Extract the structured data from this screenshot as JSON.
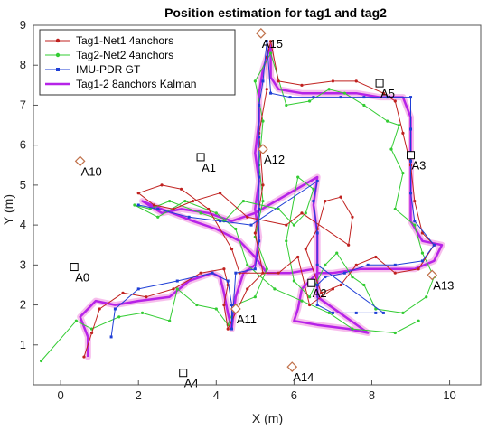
{
  "chart_data": {
    "type": "scatter",
    "title": "Position estimation for tag1 and tag2",
    "xlabel": "X (m)",
    "ylabel": "Y (m)",
    "xlim": [
      -0.7,
      10.8
    ],
    "ylim": [
      0,
      9
    ],
    "xticks": [
      0,
      2,
      4,
      6,
      8,
      10
    ],
    "yticks": [
      1,
      2,
      3,
      4,
      5,
      6,
      7,
      8,
      9
    ],
    "grid": false,
    "legend_position": "top-left",
    "series": [
      {
        "name": "Tag1-Net1 4anchors",
        "color": "#c0211f",
        "marker": "dot",
        "points": [
          [
            0.6,
            0.7
          ],
          [
            0.8,
            1.3
          ],
          [
            1.0,
            1.9
          ],
          [
            1.6,
            2.3
          ],
          [
            2.2,
            2.2
          ],
          [
            2.9,
            2.4
          ],
          [
            3.6,
            2.8
          ],
          [
            4.2,
            2.9
          ],
          [
            4.3,
            2.5
          ],
          [
            4.2,
            2.0
          ],
          [
            4.3,
            1.4
          ],
          [
            4.8,
            2.4
          ],
          [
            5.2,
            2.8
          ],
          [
            5.0,
            3.8
          ],
          [
            5.2,
            5.0
          ],
          [
            5.1,
            6.3
          ],
          [
            5.3,
            7.4
          ],
          [
            5.3,
            8.2
          ],
          [
            5.4,
            8.6
          ],
          [
            5.6,
            7.6
          ],
          [
            6.2,
            7.5
          ],
          [
            7.0,
            7.6
          ],
          [
            7.6,
            7.6
          ],
          [
            8.3,
            7.3
          ],
          [
            8.6,
            7.1
          ],
          [
            8.8,
            6.3
          ],
          [
            9.0,
            5.5
          ],
          [
            9.1,
            4.6
          ],
          [
            9.3,
            3.8
          ],
          [
            9.6,
            3.5
          ],
          [
            9.2,
            2.9
          ],
          [
            8.6,
            2.8
          ],
          [
            8.1,
            3.2
          ],
          [
            7.6,
            3.0
          ],
          [
            7.2,
            2.5
          ],
          [
            6.7,
            2.3
          ],
          [
            6.3,
            3.4
          ],
          [
            6.6,
            3.9
          ],
          [
            6.8,
            4.6
          ],
          [
            7.2,
            4.7
          ],
          [
            7.5,
            4.2
          ],
          [
            7.4,
            3.5
          ],
          [
            6.2,
            4.3
          ],
          [
            5.8,
            4.0
          ],
          [
            4.8,
            4.2
          ],
          [
            4.1,
            4.8
          ],
          [
            3.4,
            4.6
          ],
          [
            2.9,
            4.4
          ],
          [
            2.4,
            4.5
          ],
          [
            2.0,
            4.8
          ],
          [
            2.6,
            5.0
          ],
          [
            3.1,
            4.9
          ],
          [
            3.8,
            4.4
          ],
          [
            4.4,
            3.4
          ],
          [
            4.6,
            2.8
          ],
          [
            5.6,
            2.8
          ],
          [
            6.1,
            3.2
          ],
          [
            6.4,
            2.0
          ],
          [
            7.0,
            2.4
          ]
        ]
      },
      {
        "name": "Tag2-Net2 4anchors",
        "color": "#33cc33",
        "marker": "dot",
        "points": [
          [
            -0.5,
            0.6
          ],
          [
            0.4,
            1.6
          ],
          [
            0.8,
            1.4
          ],
          [
            1.5,
            1.7
          ],
          [
            2.1,
            1.8
          ],
          [
            2.8,
            1.6
          ],
          [
            3.0,
            2.4
          ],
          [
            3.5,
            2.0
          ],
          [
            4.0,
            1.9
          ],
          [
            4.3,
            1.5
          ],
          [
            4.5,
            2.0
          ],
          [
            5.0,
            2.2
          ],
          [
            5.3,
            2.9
          ],
          [
            5.0,
            3.7
          ],
          [
            5.2,
            4.6
          ],
          [
            5.1,
            5.5
          ],
          [
            5.2,
            6.6
          ],
          [
            5.0,
            7.6
          ],
          [
            5.4,
            8.3
          ],
          [
            5.8,
            7.0
          ],
          [
            6.4,
            7.1
          ],
          [
            6.9,
            7.4
          ],
          [
            7.3,
            7.3
          ],
          [
            7.8,
            7.0
          ],
          [
            8.4,
            6.6
          ],
          [
            8.7,
            6.5
          ],
          [
            8.5,
            5.9
          ],
          [
            8.8,
            5.3
          ],
          [
            8.6,
            4.4
          ],
          [
            9.1,
            4.0
          ],
          [
            9.3,
            3.3
          ],
          [
            9.6,
            2.7
          ],
          [
            9.4,
            2.2
          ],
          [
            8.8,
            1.8
          ],
          [
            8.1,
            1.9
          ],
          [
            7.8,
            2.5
          ],
          [
            7.5,
            2.7
          ],
          [
            7.1,
            3.3
          ],
          [
            6.8,
            3.0
          ],
          [
            6.4,
            2.2
          ],
          [
            6.0,
            2.6
          ],
          [
            5.8,
            3.6
          ],
          [
            6.1,
            5.2
          ],
          [
            6.5,
            4.9
          ],
          [
            6.3,
            4.3
          ],
          [
            6.0,
            4.0
          ],
          [
            5.6,
            4.4
          ],
          [
            4.7,
            4.6
          ],
          [
            4.2,
            4.1
          ],
          [
            3.6,
            4.3
          ],
          [
            2.8,
            4.6
          ],
          [
            2.3,
            4.4
          ],
          [
            1.9,
            4.5
          ],
          [
            2.5,
            4.2
          ],
          [
            3.2,
            4.6
          ],
          [
            4.0,
            4.3
          ],
          [
            4.5,
            3.9
          ],
          [
            4.8,
            3.0
          ],
          [
            5.5,
            2.4
          ],
          [
            6.2,
            2.1
          ],
          [
            6.9,
            1.8
          ],
          [
            7.5,
            1.4
          ],
          [
            8.6,
            1.3
          ],
          [
            9.2,
            1.6
          ]
        ]
      },
      {
        "name": "IMU-PDR GT",
        "color": "#1f3fd6",
        "marker": "square",
        "points": [
          [
            1.3,
            1.2
          ],
          [
            1.4,
            1.9
          ],
          [
            2.0,
            2.4
          ],
          [
            3.0,
            2.6
          ],
          [
            3.9,
            2.8
          ],
          [
            4.3,
            2.6
          ],
          [
            4.4,
            2.0
          ],
          [
            4.4,
            1.4
          ],
          [
            4.5,
            2.8
          ],
          [
            5.0,
            2.9
          ],
          [
            5.1,
            3.6
          ],
          [
            5.1,
            4.4
          ],
          [
            5.1,
            5.2
          ],
          [
            5.1,
            6.2
          ],
          [
            5.1,
            7.0
          ],
          [
            5.2,
            7.6
          ],
          [
            5.3,
            8.6
          ],
          [
            5.4,
            7.3
          ],
          [
            5.9,
            7.2
          ],
          [
            6.5,
            7.2
          ],
          [
            7.2,
            7.2
          ],
          [
            7.8,
            7.2
          ],
          [
            8.4,
            7.2
          ],
          [
            9.0,
            7.2
          ],
          [
            9.0,
            6.4
          ],
          [
            9.0,
            5.6
          ],
          [
            9.0,
            4.8
          ],
          [
            9.1,
            4.1
          ],
          [
            9.6,
            3.5
          ],
          [
            9.3,
            3.1
          ],
          [
            8.6,
            3.0
          ],
          [
            7.9,
            3.0
          ],
          [
            7.3,
            2.8
          ],
          [
            6.8,
            2.7
          ],
          [
            6.6,
            2.5
          ],
          [
            6.6,
            2.0
          ],
          [
            7.0,
            1.8
          ],
          [
            7.6,
            1.8
          ],
          [
            8.1,
            1.8
          ],
          [
            8.3,
            1.8
          ],
          [
            6.6,
            3.0
          ],
          [
            6.6,
            3.8
          ],
          [
            6.5,
            4.6
          ],
          [
            6.6,
            5.1
          ],
          [
            4.9,
            4.0
          ],
          [
            4.1,
            4.1
          ],
          [
            3.3,
            4.2
          ],
          [
            2.5,
            4.4
          ],
          [
            2.0,
            4.5
          ]
        ]
      },
      {
        "name": "Tag1-2 8anchors Kalman",
        "color": "#b623e8",
        "marker": "line",
        "points": [
          [
            0.7,
            0.7
          ],
          [
            0.7,
            1.2
          ],
          [
            0.5,
            1.7
          ],
          [
            0.9,
            2.1
          ],
          [
            1.4,
            2.0
          ],
          [
            2.0,
            2.1
          ],
          [
            2.8,
            2.2
          ],
          [
            3.3,
            2.6
          ],
          [
            3.9,
            2.8
          ],
          [
            4.1,
            2.7
          ],
          [
            4.2,
            2.3
          ],
          [
            4.3,
            1.8
          ],
          [
            4.4,
            1.4
          ],
          [
            4.5,
            2.2
          ],
          [
            4.7,
            2.8
          ],
          [
            5.0,
            3.0
          ],
          [
            5.1,
            3.7
          ],
          [
            5.0,
            4.4
          ],
          [
            5.1,
            5.1
          ],
          [
            5.0,
            5.8
          ],
          [
            5.1,
            6.6
          ],
          [
            5.1,
            7.3
          ],
          [
            5.2,
            7.9
          ],
          [
            5.4,
            8.5
          ],
          [
            5.4,
            7.7
          ],
          [
            5.6,
            7.4
          ],
          [
            6.2,
            7.3
          ],
          [
            6.9,
            7.3
          ],
          [
            7.6,
            7.3
          ],
          [
            8.2,
            7.2
          ],
          [
            8.8,
            7.2
          ],
          [
            9.0,
            6.7
          ],
          [
            9.0,
            6.0
          ],
          [
            9.0,
            5.4
          ],
          [
            9.0,
            4.8
          ],
          [
            9.0,
            4.1
          ],
          [
            9.3,
            3.6
          ],
          [
            9.8,
            3.5
          ],
          [
            9.6,
            3.1
          ],
          [
            9.1,
            2.9
          ],
          [
            8.4,
            2.9
          ],
          [
            7.7,
            2.9
          ],
          [
            7.0,
            2.8
          ],
          [
            6.6,
            2.8
          ],
          [
            6.2,
            2.4
          ],
          [
            6.1,
            1.9
          ],
          [
            6.0,
            1.6
          ],
          [
            6.6,
            1.5
          ],
          [
            7.4,
            1.4
          ],
          [
            7.9,
            1.3
          ],
          [
            6.6,
            2.2
          ],
          [
            6.6,
            3.0
          ],
          [
            6.6,
            3.8
          ],
          [
            6.5,
            4.5
          ],
          [
            6.6,
            5.2
          ],
          [
            5.0,
            4.3
          ],
          [
            4.4,
            4.1
          ],
          [
            3.8,
            4.3
          ],
          [
            3.1,
            4.4
          ],
          [
            2.6,
            4.3
          ],
          [
            2.1,
            4.6
          ],
          [
            2.6,
            4.4
          ],
          [
            3.4,
            4.1
          ],
          [
            4.0,
            3.9
          ],
          [
            4.6,
            3.6
          ],
          [
            5.0,
            3.2
          ],
          [
            5.3,
            2.8
          ],
          [
            5.9,
            2.8
          ],
          [
            6.5,
            2.9
          ]
        ]
      }
    ],
    "anchors": [
      {
        "label": "A0",
        "x": 0.35,
        "y": 2.95,
        "marker": "square",
        "color": "#000000"
      },
      {
        "label": "A1",
        "x": 3.6,
        "y": 5.7,
        "marker": "square",
        "color": "#000000"
      },
      {
        "label": "A3",
        "x": 9.0,
        "y": 5.75,
        "marker": "square",
        "color": "#000000"
      },
      {
        "label": "A4",
        "x": 3.15,
        "y": 0.3,
        "marker": "square",
        "color": "#000000"
      },
      {
        "label": "A5",
        "x": 8.2,
        "y": 7.55,
        "marker": "square",
        "color": "#000000"
      },
      {
        "label": "A10",
        "x": 0.5,
        "y": 5.6,
        "marker": "diamond",
        "color": "#c0714a"
      },
      {
        "label": "A11",
        "x": 4.5,
        "y": 1.9,
        "marker": "diamond",
        "color": "#c0714a"
      },
      {
        "label": "A12",
        "x": 5.2,
        "y": 5.9,
        "marker": "diamond",
        "color": "#c0714a"
      },
      {
        "label": "A13",
        "x": 9.55,
        "y": 2.75,
        "marker": "diamond",
        "color": "#c0714a"
      },
      {
        "label": "A14",
        "x": 5.95,
        "y": 0.45,
        "marker": "diamond",
        "color": "#c0714a"
      },
      {
        "label": "A15",
        "x": 5.15,
        "y": 8.8,
        "marker": "diamond",
        "color": "#c0714a"
      },
      {
        "label": "A2",
        "x": 6.45,
        "y": 2.55,
        "marker": "square",
        "color": "#000000"
      }
    ]
  }
}
